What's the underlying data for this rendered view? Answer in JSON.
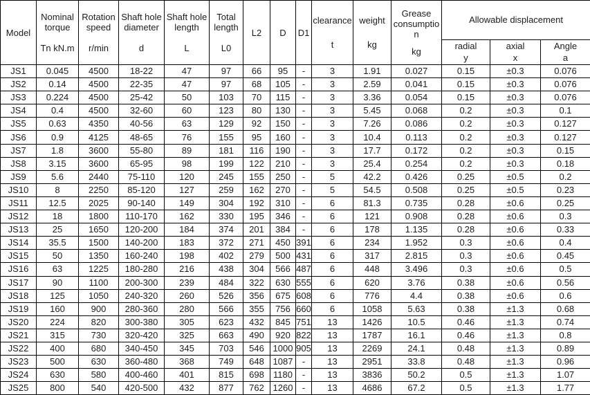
{
  "table": {
    "column_ids": [
      "model",
      "nominal_torque",
      "rotation_speed",
      "shaft_hole_diameter",
      "shaft_hole_length",
      "total_length",
      "l2",
      "d",
      "d1",
      "clearance",
      "weight",
      "grease_consumption",
      "radial_displacement",
      "axial_displacement",
      "angle_displacement"
    ],
    "columns": [
      {
        "label": "Model",
        "unit": ""
      },
      {
        "label": "Nominal torque",
        "unit": "Tn kN.m"
      },
      {
        "label": "Rotation speed",
        "unit": "r/min"
      },
      {
        "label": "Shaft hole diameter",
        "unit": "d"
      },
      {
        "label": "Shaft hole length",
        "unit": "L"
      },
      {
        "label": "Total length",
        "unit": "L0"
      },
      {
        "label": "L2",
        "unit": ""
      },
      {
        "label": "D",
        "unit": ""
      },
      {
        "label": "D1",
        "unit": ""
      },
      {
        "label": "clearance",
        "unit": "t"
      },
      {
        "label": "weight",
        "unit": "kg"
      },
      {
        "label": "Grease consumption",
        "unit": "kg"
      }
    ],
    "group": {
      "label": "Allowable displacement",
      "subcolumns": [
        {
          "label": "radial",
          "unit": "y"
        },
        {
          "label": "axial",
          "unit": "x"
        },
        {
          "label": "Angle",
          "unit": "a"
        }
      ]
    },
    "rows": [
      [
        "JS1",
        "0.045",
        "4500",
        "18-22",
        "47",
        "97",
        "66",
        "95",
        "-",
        "3",
        "1.91",
        "0.027",
        "0.15",
        "±0.3",
        "0.076"
      ],
      [
        "JS2",
        "0.14",
        "4500",
        "22-35",
        "47",
        "97",
        "68",
        "105",
        "-",
        "3",
        "2.59",
        "0.041",
        "0.15",
        "±0.3",
        "0.076"
      ],
      [
        "JS3",
        "0.224",
        "4500",
        "25-42",
        "50",
        "103",
        "70",
        "115",
        "-",
        "3",
        "3.36",
        "0.054",
        "0.15",
        "±0.3",
        "0.076"
      ],
      [
        "JS4",
        "0.4",
        "4500",
        "32-60",
        "60",
        "123",
        "80",
        "130",
        "-",
        "3",
        "5.45",
        "0.068",
        "0.2",
        "±0.3",
        "0.1"
      ],
      [
        "JS5",
        "0.63",
        "4350",
        "40-56",
        "63",
        "129",
        "92",
        "150",
        "-",
        "3",
        "7.26",
        "0.086",
        "0.2",
        "±0.3",
        "0.127"
      ],
      [
        "JS6",
        "0.9",
        "4125",
        "48-65",
        "76",
        "155",
        "95",
        "160",
        "-",
        "3",
        "10.4",
        "0.113",
        "0.2",
        "±0.3",
        "0.127"
      ],
      [
        "JS7",
        "1.8",
        "3600",
        "55-80",
        "89",
        "181",
        "116",
        "190",
        "-",
        "3",
        "17.7",
        "0.172",
        "0.2",
        "±0.3",
        "0.15"
      ],
      [
        "JS8",
        "3.15",
        "3600",
        "65-95",
        "98",
        "199",
        "122",
        "210",
        "-",
        "3",
        "25.4",
        "0.254",
        "0.2",
        "±0.3",
        "0.18"
      ],
      [
        "JS9",
        "5.6",
        "2440",
        "75-110",
        "120",
        "245",
        "155",
        "250",
        "-",
        "5",
        "42.2",
        "0.426",
        "0.25",
        "±0.5",
        "0.2"
      ],
      [
        "JS10",
        "8",
        "2250",
        "85-120",
        "127",
        "259",
        "162",
        "270",
        "-",
        "5",
        "54.5",
        "0.508",
        "0.25",
        "±0.5",
        "0.23"
      ],
      [
        "JS11",
        "12.5",
        "2025",
        "90-140",
        "149",
        "304",
        "192",
        "310",
        "-",
        "6",
        "81.3",
        "0.735",
        "0.28",
        "±0.6",
        "0.25"
      ],
      [
        "JS12",
        "18",
        "1800",
        "110-170",
        "162",
        "330",
        "195",
        "346",
        "-",
        "6",
        "121",
        "0.908",
        "0.28",
        "±0.6",
        "0.3"
      ],
      [
        "JS13",
        "25",
        "1650",
        "120-200",
        "184",
        "374",
        "201",
        "384",
        "-",
        "6",
        "178",
        "1.135",
        "0.28",
        "±0.6",
        "0.33"
      ],
      [
        "JS14",
        "35.5",
        "1500",
        "140-200",
        "183",
        "372",
        "271",
        "450",
        "391",
        "6",
        "234",
        "1.952",
        "0.3",
        "±0.6",
        "0.4"
      ],
      [
        "JS15",
        "50",
        "1350",
        "160-240",
        "198",
        "402",
        "279",
        "500",
        "431",
        "6",
        "317",
        "2.815",
        "0.3",
        "±0.6",
        "0.45"
      ],
      [
        "JS16",
        "63",
        "1225",
        "180-280",
        "216",
        "438",
        "304",
        "566",
        "487",
        "6",
        "448",
        "3.496",
        "0.3",
        "±0.6",
        "0.5"
      ],
      [
        "JS17",
        "90",
        "1100",
        "200-300",
        "239",
        "484",
        "322",
        "630",
        "555",
        "6",
        "620",
        "3.76",
        "0.38",
        "±0.6",
        "0.56"
      ],
      [
        "JS18",
        "125",
        "1050",
        "240-320",
        "260",
        "526",
        "356",
        "675",
        "608",
        "6",
        "776",
        "4.4",
        "0.38",
        "±0.6",
        "0.6"
      ],
      [
        "JS19",
        "160",
        "900",
        "280-360",
        "280",
        "566",
        "355",
        "756",
        "660",
        "6",
        "1058",
        "5.63",
        "0.38",
        "±1.3",
        "0.68"
      ],
      [
        "JS20",
        "224",
        "820",
        "300-380",
        "305",
        "623",
        "432",
        "845",
        "751",
        "13",
        "1426",
        "10.5",
        "0.46",
        "±1.3",
        "0.74"
      ],
      [
        "JS21",
        "315",
        "730",
        "320-420",
        "325",
        "663",
        "490",
        "920",
        "822",
        "13",
        "1787",
        "16.1",
        "0.46",
        "±1.3",
        "0.8"
      ],
      [
        "JS22",
        "400",
        "680",
        "340-450",
        "345",
        "703",
        "546",
        "1000",
        "905",
        "13",
        "2269",
        "24.1",
        "0.48",
        "±1.3",
        "0.89"
      ],
      [
        "JS23",
        "500",
        "630",
        "360-480",
        "368",
        "749",
        "648",
        "1087",
        "-",
        "13",
        "2951",
        "33.8",
        "0.48",
        "±1.3",
        "0.96"
      ],
      [
        "JS24",
        "630",
        "580",
        "400-460",
        "401",
        "815",
        "698",
        "1180",
        "-",
        "13",
        "3836",
        "50.2",
        "0.5",
        "±1.3",
        "1.07"
      ],
      [
        "JS25",
        "800",
        "540",
        "420-500",
        "432",
        "877",
        "762",
        "1260",
        "-",
        "13",
        "4686",
        "67.2",
        "0.5",
        "±1.3",
        "1.77"
      ]
    ]
  },
  "colors": {
    "background": "#ffffff",
    "border": "#000000",
    "text": "#1c1c1c"
  }
}
